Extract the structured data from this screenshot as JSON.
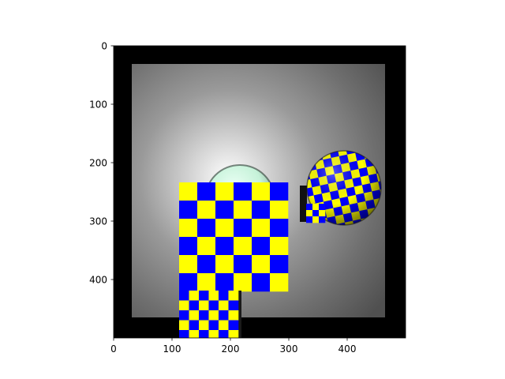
{
  "chart_data": {
    "type": "image",
    "title": "",
    "xlabel": "",
    "ylabel": "",
    "xlim": [
      0,
      500
    ],
    "ylim": [
      500,
      0
    ],
    "x_ticks": [
      0,
      100,
      200,
      300,
      400
    ],
    "y_ticks": [
      0,
      100,
      200,
      300,
      400
    ],
    "x_tick_labels": [
      "0",
      "100",
      "200",
      "300",
      "400"
    ],
    "y_tick_labels": [
      "0",
      "100",
      "200",
      "300",
      "400"
    ],
    "grid": false,
    "legend": "none",
    "image_content": {
      "frame_color": "#000000",
      "background": "radial gray gradient (bright center, dark edges)",
      "objects": [
        {
          "name": "large checkered rectangle",
          "colors": [
            "#0000ff",
            "#ffff00"
          ],
          "x": [
            113,
            300
          ],
          "y": [
            234,
            418
          ]
        },
        {
          "name": "small checkered rectangle",
          "colors": [
            "#0000ff",
            "#ffff00"
          ],
          "x": [
            113,
            215
          ],
          "y": [
            418,
            500
          ]
        },
        {
          "name": "pale green sphere",
          "colors": [
            "#c8f5dc"
          ],
          "center": [
            214,
            258
          ],
          "radius": 60
        },
        {
          "name": "checkered sphere",
          "colors": [
            "#0000ff",
            "#ffff00"
          ],
          "center": [
            398,
            245
          ],
          "radius": 63
        },
        {
          "name": "small checkered block",
          "colors": [
            "#0000ff",
            "#ffff00"
          ],
          "x": [
            323,
            365
          ],
          "y": [
            239,
            300
          ]
        }
      ]
    }
  },
  "colors": {
    "blue": "#0000ff",
    "yellow": "#ffff00",
    "frame": "#000000"
  }
}
